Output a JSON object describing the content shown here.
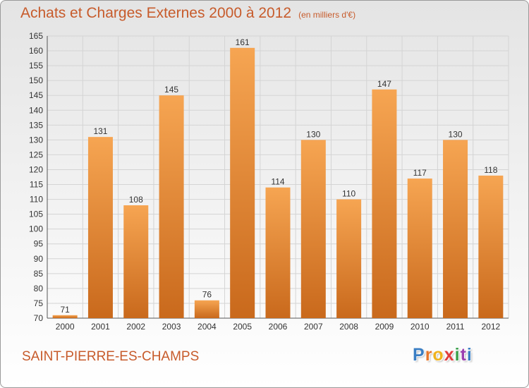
{
  "header": {
    "title": "Achats et Charges Externes 2000 à 2012",
    "unit": "(en milliers d'€)"
  },
  "footer": {
    "commune": "SAINT-PIERRE-ES-CHAMPS",
    "logo": [
      "P",
      "r",
      "o",
      "x",
      "i",
      "t",
      "i"
    ]
  },
  "colors": {
    "title": "#c75b2b",
    "bar_light": "#f6a552",
    "bar_dark": "#c9691c",
    "grid": "#d4d4d4"
  },
  "chart_data": {
    "type": "bar",
    "categories": [
      "2000",
      "2001",
      "2002",
      "2003",
      "2004",
      "2005",
      "2006",
      "2007",
      "2008",
      "2009",
      "2010",
      "2011",
      "2012"
    ],
    "values": [
      71,
      131,
      108,
      145,
      76,
      161,
      114,
      130,
      110,
      147,
      117,
      130,
      118
    ],
    "yticks": [
      70,
      75,
      80,
      85,
      90,
      95,
      100,
      105,
      110,
      115,
      120,
      125,
      130,
      135,
      140,
      145,
      150,
      155,
      160,
      165
    ],
    "ylim": [
      70,
      165
    ],
    "grid": true,
    "data_labels": true
  }
}
